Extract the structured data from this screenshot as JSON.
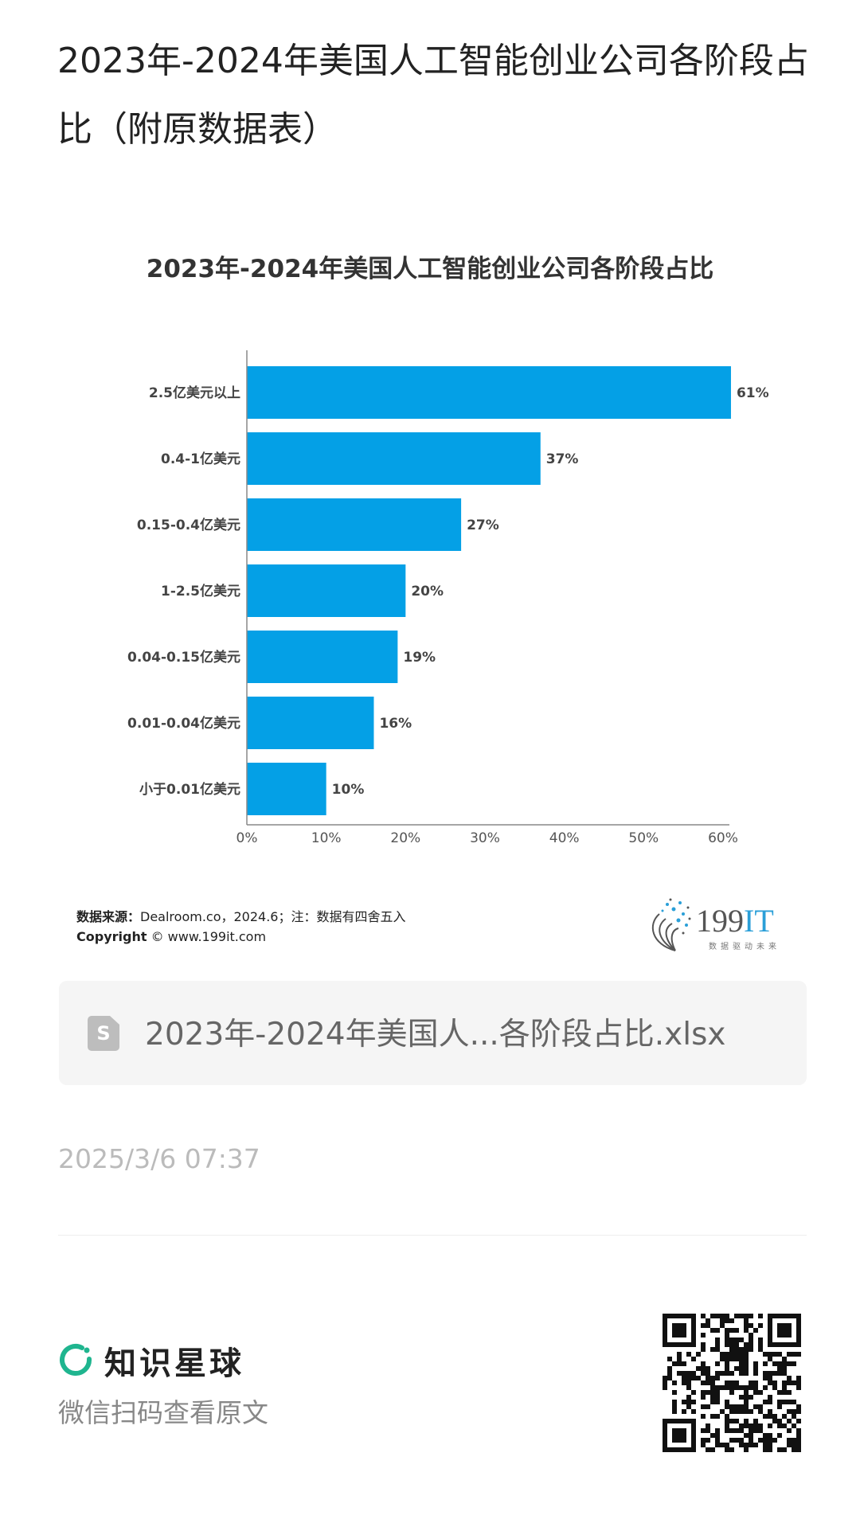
{
  "page": {
    "title": "2023年-2024年美国人工智能创业公司各阶段占比（附原数据表）"
  },
  "chart_data": {
    "type": "bar",
    "orientation": "horizontal",
    "title": "2023年-2024年美国人工智能创业公司各阶段占比",
    "categories": [
      "2.5亿美元以上",
      "0.4-1亿美元",
      "0.15-0.4亿美元",
      "1-2.5亿美元",
      "0.04-0.15亿美元",
      "0.01-0.04亿美元",
      "小于0.01亿美元"
    ],
    "values": [
      61,
      37,
      27,
      20,
      19,
      16,
      10
    ],
    "value_labels": [
      "61%",
      "37%",
      "27%",
      "20%",
      "19%",
      "16%",
      "10%"
    ],
    "xticks": [
      0,
      10,
      20,
      30,
      40,
      50,
      60
    ],
    "xtick_labels": [
      "0%",
      "10%",
      "20%",
      "30%",
      "40%",
      "50%",
      "60%"
    ],
    "xlim": [
      0,
      61
    ],
    "xlabel": "",
    "ylabel": "",
    "grid": false,
    "bar_color": "#04a0e6"
  },
  "source": {
    "label": "数据来源：",
    "text": "Dealroom.co，2024.6；注：数据有四舍五入",
    "copyright_label": "Copyright",
    "copyright_text": "© www.199it.com"
  },
  "logo": {
    "name": "199IT",
    "slogan": "数据驱动未来"
  },
  "file": {
    "icon": "spreadsheet-icon",
    "icon_letter": "S",
    "name": "2023年-2024年美国人...各阶段占比.xlsx"
  },
  "date": "2025/3/6 07:37",
  "footer": {
    "brand": "知识星球",
    "scan_text": "微信扫码查看原文",
    "accent": "#1fb58f"
  }
}
